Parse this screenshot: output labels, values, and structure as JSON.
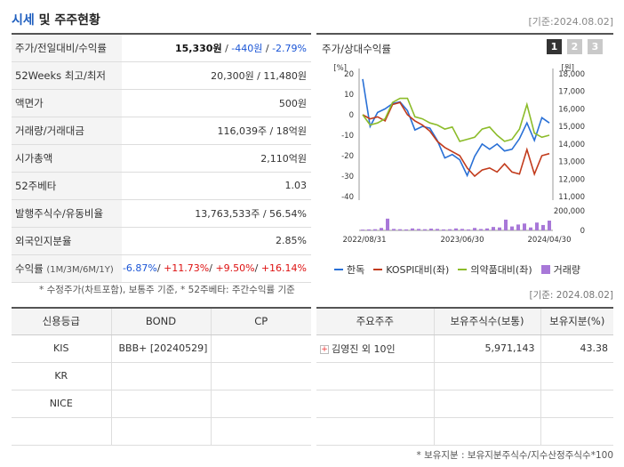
{
  "header": {
    "title_main": "시세",
    "title_rest": " 및 주주현황",
    "base_date": "[기준:2024.08.02]"
  },
  "info_rows": [
    {
      "label": "주가/전일대비/수익률"
    },
    {
      "label": "52Weeks 최고/최저",
      "value": "20,300원 / 11,480원"
    },
    {
      "label": "액면가",
      "value": "500원"
    },
    {
      "label": "거래량/거래대금",
      "value": "116,039주 / 18억원"
    },
    {
      "label": "시가총액",
      "value": "2,110억원"
    },
    {
      "label": "52주베타",
      "value": "1.03"
    },
    {
      "label": "발행주식수/유동비율",
      "value": "13,763,533주 / 56.54%"
    },
    {
      "label": "외국인지분율",
      "value": "2.85%"
    },
    {
      "label": "수익률",
      "label_sub": "(1M/3M/6M/1Y)"
    }
  ],
  "price": {
    "current": "15,330원",
    "change": "-440원",
    "rate": "-2.79%",
    "sep": " / "
  },
  "returns": {
    "m1": "-6.87%",
    "m3": "+11.73%",
    "m6": "+9.50%",
    "y1": "+16.14%",
    "sep": "/ "
  },
  "note_top": "* 수정주가(차트포함), 보통주 기준, * 52주베타: 주간수익률 기준",
  "chart": {
    "title": "주가/상대수익률",
    "period_tabs": [
      "1",
      "2",
      "3"
    ],
    "active_tab": 0,
    "left_unit": "[%]",
    "right_unit": "[원]",
    "legend": [
      {
        "name": "한독",
        "color": "#2970d6",
        "kind": "line"
      },
      {
        "name": "KOSPI대비(좌)",
        "color": "#c23b1c",
        "kind": "line"
      },
      {
        "name": "의약품대비(좌)",
        "color": "#8cbc2a",
        "kind": "line"
      },
      {
        "name": "거래량",
        "color": "#a878d8",
        "kind": "bar"
      }
    ]
  },
  "chart_data": {
    "type": "line",
    "x_tick_labels": [
      "2022/08/31",
      "2023/06/30",
      "2024/04/30"
    ],
    "y_left_ticks": [
      "20",
      "10",
      "0",
      "-10",
      "-20",
      "-30",
      "-40"
    ],
    "y_left_range": [
      -40,
      20
    ],
    "y_right_ticks": [
      "18,000",
      "17,000",
      "16,000",
      "15,000",
      "14,000",
      "13,000",
      "12,000",
      "11,000"
    ],
    "y_right_range": [
      11000,
      18000
    ],
    "volume_ticks": [
      "200,000",
      "0"
    ],
    "volume_range": [
      0,
      200000
    ],
    "series": [
      {
        "name": "한독",
        "axis": "right",
        "color": "#2970d6",
        "values": [
          17700,
          15000,
          15800,
          16000,
          16300,
          16400,
          15900,
          14800,
          15000,
          14900,
          14200,
          13200,
          13400,
          13100,
          12200,
          13300,
          14000,
          13700,
          14000,
          13600,
          13700,
          14300,
          15200,
          14200,
          15500,
          15200
        ]
      },
      {
        "name": "KOSPI대비(좌)",
        "axis": "left",
        "color": "#c23b1c",
        "values": [
          0,
          -2,
          -1,
          -3,
          5,
          6,
          0,
          -3,
          -5,
          -8,
          -13,
          -16,
          -18,
          -20,
          -26,
          -30,
          -27,
          -26,
          -28,
          -24,
          -28,
          -29,
          -17,
          -29,
          -20,
          -19
        ]
      },
      {
        "name": "의약품대비(좌)",
        "axis": "left",
        "color": "#8cbc2a",
        "values": [
          0,
          -5,
          -4,
          -2,
          6,
          8,
          8,
          -1,
          -2,
          -4,
          -5,
          -7,
          -6,
          -13,
          -12,
          -11,
          -7,
          -6,
          -10,
          -13,
          -12,
          -7,
          5,
          -9,
          -11,
          -10
        ]
      },
      {
        "name": "거래량",
        "axis": "volume",
        "color": "#a878d8",
        "type": "bar",
        "values": [
          8000,
          10000,
          12000,
          25000,
          120000,
          15000,
          12000,
          10000,
          20000,
          15000,
          12000,
          18000,
          15000,
          10000,
          12000,
          20000,
          15000,
          10000,
          25000,
          14000,
          20000,
          35000,
          30000,
          110000,
          40000,
          60000,
          70000,
          30000,
          80000,
          55000,
          100000
        ]
      }
    ]
  },
  "date2": "[기준: 2024.08.02]",
  "credit": {
    "headers": [
      "신용등급",
      "BOND",
      "CP"
    ],
    "rows": [
      {
        "agency": "KIS",
        "bond": "BBB+ [20240529]",
        "cp": ""
      },
      {
        "agency": "KR",
        "bond": "",
        "cp": ""
      },
      {
        "agency": "NICE",
        "bond": "",
        "cp": ""
      },
      {
        "agency": "",
        "bond": "",
        "cp": ""
      }
    ]
  },
  "holders": {
    "headers": [
      "주요주주",
      "보유주식수(보통)",
      "보유지분(%)"
    ],
    "rows": [
      {
        "name": "김영진 외 10인",
        "shares": "5,971,143",
        "pct": "43.38"
      },
      {
        "name": "",
        "shares": "",
        "pct": ""
      },
      {
        "name": "",
        "shares": "",
        "pct": ""
      },
      {
        "name": "",
        "shares": "",
        "pct": ""
      }
    ]
  },
  "note_bottom": "* 보유지분 : 보유지분주식수/지수산정주식수*100"
}
